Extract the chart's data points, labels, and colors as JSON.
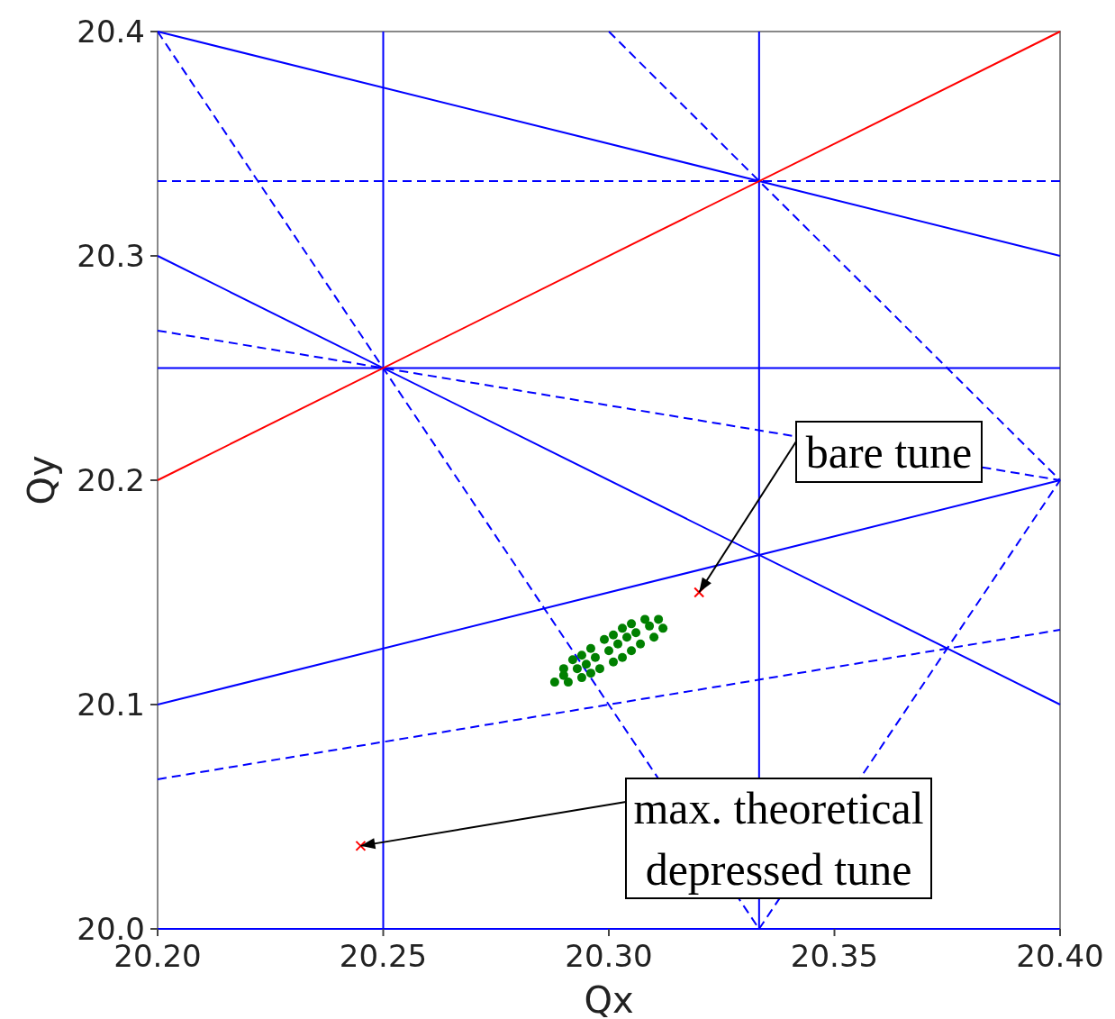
{
  "chart_data": {
    "type": "line",
    "xlabel": "Qx",
    "ylabel": "Qy",
    "xlim": [
      20.2,
      20.4
    ],
    "ylim": [
      20.0,
      20.4
    ],
    "xticks": [
      {
        "value": 20.2,
        "label": "20.20"
      },
      {
        "value": 20.25,
        "label": "20.25"
      },
      {
        "value": 20.3,
        "label": "20.30"
      },
      {
        "value": 20.35,
        "label": "20.35"
      },
      {
        "value": 20.4,
        "label": "20.40"
      }
    ],
    "yticks": [
      {
        "value": 20.0,
        "label": "20.0"
      },
      {
        "value": 20.1,
        "label": "20.1"
      },
      {
        "value": 20.2,
        "label": "20.2"
      },
      {
        "value": 20.3,
        "label": "20.3"
      },
      {
        "value": 20.4,
        "label": "20.4"
      }
    ],
    "grid": false,
    "series": [
      {
        "color": "#0000ff",
        "line_style": "solid",
        "x": [
          20.25,
          20.25
        ],
        "values": [
          20.0,
          20.4
        ]
      },
      {
        "color": "#0000ff",
        "line_style": "solid",
        "x": [
          20.3333,
          20.3333
        ],
        "values": [
          20.0,
          20.4
        ]
      },
      {
        "color": "#0000ff",
        "line_style": "solid",
        "x": [
          20.2,
          20.4
        ],
        "values": [
          20.25,
          20.25
        ]
      },
      {
        "color": "#0000ff",
        "line_style": "solid",
        "x": [
          20.2,
          20.4
        ],
        "values": [
          20.0,
          20.0
        ]
      },
      {
        "color": "#0000ff",
        "line_style": "solid",
        "x": [
          20.2,
          20.4
        ],
        "values": [
          20.4,
          20.3
        ]
      },
      {
        "color": "#0000ff",
        "line_style": "solid",
        "x": [
          20.2,
          20.4
        ],
        "values": [
          20.3,
          20.1
        ]
      },
      {
        "color": "#0000ff",
        "line_style": "solid",
        "x": [
          20.2,
          20.4
        ],
        "values": [
          20.1,
          20.2
        ]
      },
      {
        "color": "#0000ff",
        "line_style": "dashed",
        "x": [
          20.2,
          20.4
        ],
        "values": [
          20.3333,
          20.3333
        ]
      },
      {
        "color": "#0000ff",
        "line_style": "dashed",
        "x": [
          20.2,
          20.3333
        ],
        "values": [
          20.4,
          20.0
        ]
      },
      {
        "color": "#0000ff",
        "line_style": "dashed",
        "x": [
          20.3,
          20.4
        ],
        "values": [
          20.4,
          20.2
        ]
      },
      {
        "color": "#0000ff",
        "line_style": "dashed",
        "x": [
          20.2,
          20.4
        ],
        "values": [
          20.2667,
          20.2
        ]
      },
      {
        "color": "#0000ff",
        "line_style": "dashed",
        "x": [
          20.3333,
          20.4
        ],
        "values": [
          20.0,
          20.2
        ]
      },
      {
        "color": "#0000ff",
        "line_style": "dashed",
        "x": [
          20.2,
          20.4
        ],
        "values": [
          20.0667,
          20.1333
        ]
      },
      {
        "color": "#ff0000",
        "line_style": "solid",
        "x": [
          20.2,
          20.4
        ],
        "values": [
          20.2,
          20.4
        ]
      },
      {
        "type": "scatter",
        "color": "#008000",
        "marker": "circle",
        "x": [
          20.288,
          20.29,
          20.291,
          20.29,
          20.293,
          20.294,
          20.292,
          20.295,
          20.296,
          20.294,
          20.297,
          20.298,
          20.296,
          20.3,
          20.301,
          20.299,
          20.302,
          20.303,
          20.301,
          20.304,
          20.305,
          20.303,
          20.306,
          20.307,
          20.305,
          20.309,
          20.31,
          20.308,
          20.311,
          20.312
        ],
        "values": [
          20.11,
          20.113,
          20.11,
          20.116,
          20.116,
          20.112,
          20.12,
          20.118,
          20.114,
          20.122,
          20.121,
          20.116,
          20.125,
          20.124,
          20.119,
          20.129,
          20.127,
          20.121,
          20.131,
          20.13,
          20.124,
          20.134,
          20.132,
          20.127,
          20.136,
          20.135,
          20.13,
          20.138,
          20.138,
          20.134
        ]
      },
      {
        "type": "scatter",
        "color": "#ff0000",
        "marker": "cross",
        "x": [
          20.32,
          20.245
        ],
        "values": [
          20.15,
          20.037
        ]
      }
    ],
    "annotations": [
      {
        "text": "bare tune",
        "x": 20.32,
        "y": 20.15
      },
      {
        "text": "max. theoretical depressed tune",
        "x": 20.245,
        "y": 20.037
      }
    ]
  }
}
